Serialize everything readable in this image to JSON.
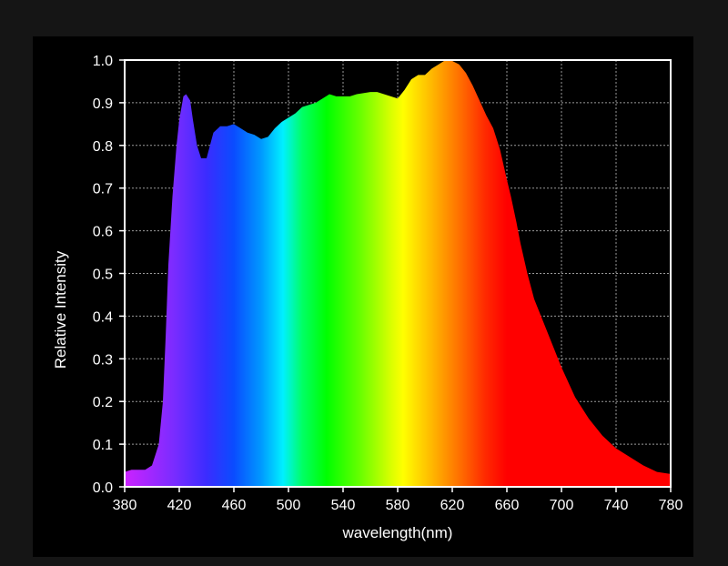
{
  "chart_data": {
    "type": "area",
    "title": "",
    "xlabel": "wavelength(nm)",
    "ylabel": "Relative Intensity",
    "xlim": [
      380,
      780
    ],
    "ylim": [
      0,
      1.0
    ],
    "grid": true,
    "x_ticks": [
      "380",
      "420",
      "460",
      "500",
      "540",
      "580",
      "620",
      "660",
      "700",
      "740",
      "780"
    ],
    "y_ticks": [
      "0.0",
      "0.1",
      "0.2",
      "0.3",
      "0.4",
      "0.5",
      "0.6",
      "0.7",
      "0.8",
      "0.9",
      "1.0"
    ],
    "fill": "visible-spectrum gradient",
    "series": [
      {
        "x": [
          380,
          385,
          395,
          400,
          405,
          408,
          410,
          412,
          415,
          418,
          420,
          423,
          425,
          428,
          430,
          433,
          436,
          440,
          445,
          450,
          455,
          460,
          465,
          470,
          475,
          480,
          485,
          490,
          495,
          500,
          505,
          510,
          520,
          525,
          530,
          535,
          540,
          545,
          550,
          560,
          565,
          570,
          575,
          580,
          585,
          590,
          595,
          600,
          605,
          610,
          615,
          620,
          625,
          630,
          635,
          640,
          645,
          650,
          655,
          660,
          663,
          667,
          670,
          675,
          680,
          690,
          700,
          710,
          720,
          730,
          740,
          750,
          760,
          770,
          780
        ],
        "y": [
          0.035,
          0.04,
          0.04,
          0.05,
          0.1,
          0.2,
          0.35,
          0.52,
          0.68,
          0.8,
          0.86,
          0.915,
          0.92,
          0.905,
          0.86,
          0.8,
          0.77,
          0.77,
          0.83,
          0.845,
          0.845,
          0.85,
          0.84,
          0.83,
          0.825,
          0.815,
          0.82,
          0.84,
          0.855,
          0.865,
          0.875,
          0.89,
          0.9,
          0.91,
          0.92,
          0.915,
          0.915,
          0.915,
          0.92,
          0.925,
          0.925,
          0.92,
          0.915,
          0.91,
          0.93,
          0.955,
          0.965,
          0.965,
          0.98,
          0.99,
          1.0,
          0.998,
          0.99,
          0.97,
          0.94,
          0.905,
          0.87,
          0.84,
          0.79,
          0.72,
          0.68,
          0.62,
          0.57,
          0.5,
          0.44,
          0.36,
          0.28,
          0.21,
          0.16,
          0.12,
          0.09,
          0.07,
          0.05,
          0.035,
          0.03
        ]
      }
    ]
  }
}
